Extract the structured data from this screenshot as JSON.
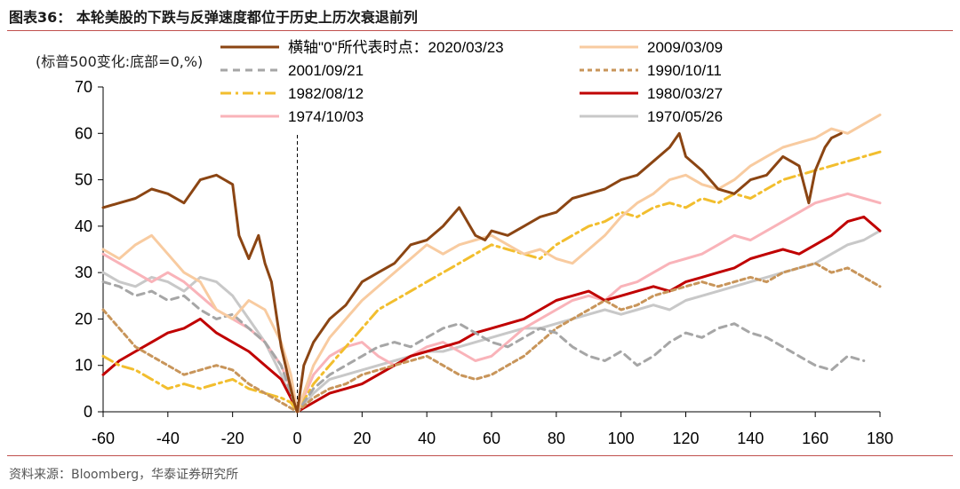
{
  "figure": {
    "title": "图表36： 本轮美股的下跌与反弹速度都位于历史上历次衰退前列",
    "unit_note": "(标普500变化:底部=0,%)",
    "source": "资料来源：Bloomberg，华泰证券研究所"
  },
  "chart_data": {
    "type": "line",
    "xlim": [
      -60,
      180
    ],
    "ylim": [
      0,
      70
    ],
    "x_ticks": [
      -60,
      -40,
      -20,
      0,
      20,
      40,
      60,
      80,
      100,
      120,
      140,
      160,
      180
    ],
    "y_ticks": [
      0,
      10,
      20,
      30,
      40,
      50,
      60,
      70
    ],
    "zero_marker_x": 0,
    "grid": false,
    "legend_position": "top-center",
    "series": [
      {
        "name": "横轴\"0\"所代表时点：2020/03/23",
        "color": "#8B4513",
        "dash": "solid",
        "x": [
          -60,
          -55,
          -50,
          -45,
          -40,
          -35,
          -30,
          -25,
          -20,
          -18,
          -15,
          -12,
          -10,
          -8,
          -5,
          -3,
          -1,
          0,
          2,
          5,
          8,
          10,
          15,
          20,
          25,
          30,
          35,
          40,
          45,
          50,
          55,
          58,
          60,
          65,
          70,
          75,
          80,
          85,
          90,
          95,
          100,
          105,
          110,
          115,
          118,
          120,
          125,
          130,
          135,
          140,
          145,
          150,
          155,
          158,
          160,
          163,
          165,
          168
        ],
        "y": [
          44,
          45,
          46,
          48,
          47,
          45,
          50,
          51,
          49,
          38,
          33,
          38,
          32,
          28,
          14,
          8,
          2,
          0,
          10,
          15,
          18,
          20,
          23,
          28,
          30,
          32,
          36,
          37,
          40,
          44,
          38,
          37,
          39,
          38,
          40,
          42,
          43,
          46,
          47,
          48,
          50,
          51,
          54,
          57,
          60,
          55,
          52,
          48,
          47,
          50,
          51,
          55,
          53,
          45,
          52,
          57,
          59,
          60
        ]
      },
      {
        "name": "2009/03/09",
        "color": "#F8CBA0",
        "dash": "solid",
        "x": [
          -60,
          -55,
          -50,
          -45,
          -40,
          -35,
          -30,
          -25,
          -20,
          -15,
          -10,
          -5,
          -2,
          0,
          5,
          10,
          15,
          20,
          25,
          30,
          35,
          40,
          45,
          50,
          55,
          60,
          65,
          70,
          75,
          80,
          85,
          90,
          95,
          100,
          105,
          110,
          115,
          120,
          125,
          130,
          135,
          140,
          145,
          150,
          155,
          160,
          165,
          170,
          175,
          180
        ],
        "y": [
          35,
          33,
          36,
          38,
          34,
          30,
          28,
          22,
          20,
          24,
          22,
          15,
          8,
          0,
          10,
          16,
          20,
          24,
          27,
          30,
          33,
          36,
          34,
          36,
          37,
          38,
          36,
          34,
          35,
          33,
          32,
          35,
          38,
          42,
          45,
          47,
          50,
          51,
          49,
          48,
          50,
          53,
          55,
          57,
          58,
          59,
          61,
          60,
          62,
          64
        ]
      },
      {
        "name": "2001/09/21",
        "color": "#A6A6A6",
        "dash": "8,6",
        "x": [
          -60,
          -55,
          -50,
          -45,
          -40,
          -35,
          -30,
          -25,
          -20,
          -15,
          -10,
          -5,
          0,
          5,
          10,
          15,
          20,
          25,
          30,
          35,
          40,
          45,
          50,
          55,
          60,
          65,
          70,
          75,
          80,
          85,
          90,
          95,
          100,
          105,
          110,
          115,
          120,
          125,
          130,
          135,
          140,
          145,
          150,
          155,
          160,
          165,
          170,
          175
        ],
        "y": [
          28,
          27,
          25,
          26,
          24,
          25,
          22,
          20,
          21,
          18,
          15,
          10,
          0,
          5,
          8,
          10,
          12,
          14,
          15,
          14,
          16,
          18,
          19,
          17,
          15,
          14,
          16,
          18,
          17,
          14,
          12,
          11,
          13,
          10,
          12,
          15,
          17,
          16,
          18,
          19,
          17,
          16,
          14,
          12,
          10,
          9,
          12,
          11
        ]
      },
      {
        "name": "1990/10/11",
        "color": "#C8955A",
        "dash": "5,4",
        "x": [
          -60,
          -55,
          -50,
          -45,
          -40,
          -35,
          -30,
          -25,
          -20,
          -15,
          -10,
          -5,
          0,
          5,
          10,
          15,
          20,
          25,
          30,
          35,
          40,
          45,
          50,
          55,
          60,
          65,
          70,
          75,
          80,
          85,
          90,
          95,
          100,
          105,
          110,
          115,
          120,
          125,
          130,
          135,
          140,
          145,
          150,
          155,
          160,
          165,
          170,
          175,
          180
        ],
        "y": [
          22,
          18,
          14,
          12,
          10,
          8,
          9,
          10,
          9,
          6,
          4,
          2,
          0,
          3,
          5,
          6,
          8,
          9,
          10,
          11,
          12,
          10,
          8,
          7,
          8,
          10,
          12,
          15,
          18,
          20,
          22,
          24,
          22,
          23,
          25,
          26,
          27,
          28,
          27,
          28,
          29,
          28,
          30,
          31,
          32,
          30,
          31,
          29,
          27
        ]
      },
      {
        "name": "1982/08/12",
        "color": "#F2BE2E",
        "dash": "12,5,3,5",
        "x": [
          -60,
          -55,
          -50,
          -45,
          -40,
          -35,
          -30,
          -25,
          -20,
          -15,
          -10,
          -5,
          -2,
          0,
          5,
          10,
          15,
          20,
          25,
          30,
          35,
          40,
          45,
          50,
          55,
          60,
          65,
          70,
          75,
          80,
          85,
          90,
          95,
          100,
          105,
          110,
          115,
          120,
          125,
          130,
          135,
          140,
          145,
          150,
          155,
          160,
          165,
          170,
          175,
          180
        ],
        "y": [
          12,
          10,
          9,
          7,
          5,
          6,
          5,
          6,
          7,
          5,
          4,
          3,
          2,
          0,
          6,
          10,
          14,
          18,
          22,
          24,
          26,
          28,
          30,
          32,
          34,
          36,
          35,
          34,
          33,
          36,
          38,
          40,
          41,
          43,
          42,
          44,
          45,
          44,
          46,
          45,
          47,
          46,
          48,
          50,
          51,
          52,
          53,
          54,
          55,
          56
        ]
      },
      {
        "name": "1980/03/27",
        "color": "#C00000",
        "dash": "solid",
        "x": [
          -60,
          -55,
          -50,
          -45,
          -40,
          -35,
          -30,
          -25,
          -20,
          -15,
          -10,
          -5,
          -2,
          0,
          5,
          10,
          15,
          20,
          25,
          30,
          35,
          40,
          45,
          50,
          55,
          60,
          65,
          70,
          75,
          80,
          85,
          90,
          95,
          100,
          105,
          110,
          115,
          120,
          125,
          130,
          135,
          140,
          145,
          150,
          155,
          160,
          165,
          170,
          175,
          180
        ],
        "y": [
          8,
          11,
          13,
          15,
          17,
          18,
          20,
          17,
          15,
          13,
          10,
          7,
          3,
          0,
          2,
          4,
          5,
          6,
          8,
          10,
          12,
          13,
          14,
          15,
          17,
          18,
          19,
          20,
          22,
          24,
          25,
          26,
          24,
          25,
          26,
          27,
          26,
          28,
          29,
          30,
          31,
          33,
          34,
          35,
          34,
          36,
          38,
          41,
          42,
          39
        ]
      },
      {
        "name": "1974/10/03",
        "color": "#F9B3B9",
        "dash": "solid",
        "x": [
          -60,
          -55,
          -50,
          -45,
          -40,
          -35,
          -30,
          -25,
          -20,
          -15,
          -10,
          -5,
          -2,
          0,
          5,
          10,
          15,
          20,
          25,
          30,
          35,
          40,
          45,
          50,
          55,
          60,
          65,
          70,
          75,
          80,
          85,
          90,
          95,
          100,
          105,
          110,
          115,
          120,
          125,
          130,
          135,
          140,
          145,
          150,
          155,
          160,
          165,
          170,
          175,
          180
        ],
        "y": [
          34,
          32,
          30,
          28,
          30,
          28,
          25,
          22,
          20,
          18,
          15,
          10,
          5,
          0,
          8,
          12,
          14,
          15,
          12,
          10,
          12,
          14,
          15,
          13,
          11,
          12,
          15,
          18,
          20,
          22,
          24,
          25,
          24,
          27,
          28,
          30,
          32,
          33,
          34,
          36,
          38,
          37,
          39,
          41,
          43,
          45,
          46,
          47,
          46,
          45
        ]
      },
      {
        "name": "1970/05/26",
        "color": "#C8C8C8",
        "dash": "solid",
        "x": [
          -60,
          -55,
          -50,
          -45,
          -40,
          -35,
          -30,
          -25,
          -20,
          -15,
          -10,
          -5,
          -2,
          0,
          5,
          10,
          15,
          20,
          25,
          30,
          35,
          40,
          45,
          50,
          55,
          60,
          65,
          70,
          75,
          80,
          85,
          90,
          95,
          100,
          105,
          110,
          115,
          120,
          125,
          130,
          135,
          140,
          145,
          150,
          155,
          160,
          165,
          170,
          175,
          180
        ],
        "y": [
          30,
          28,
          27,
          29,
          28,
          26,
          29,
          28,
          25,
          20,
          15,
          8,
          3,
          0,
          4,
          7,
          8,
          9,
          10,
          11,
          12,
          13,
          13,
          14,
          15,
          16,
          17,
          18,
          18,
          19,
          20,
          21,
          22,
          21,
          22,
          23,
          22,
          24,
          25,
          26,
          27,
          28,
          29,
          30,
          31,
          32,
          34,
          36,
          37,
          39
        ]
      }
    ]
  }
}
